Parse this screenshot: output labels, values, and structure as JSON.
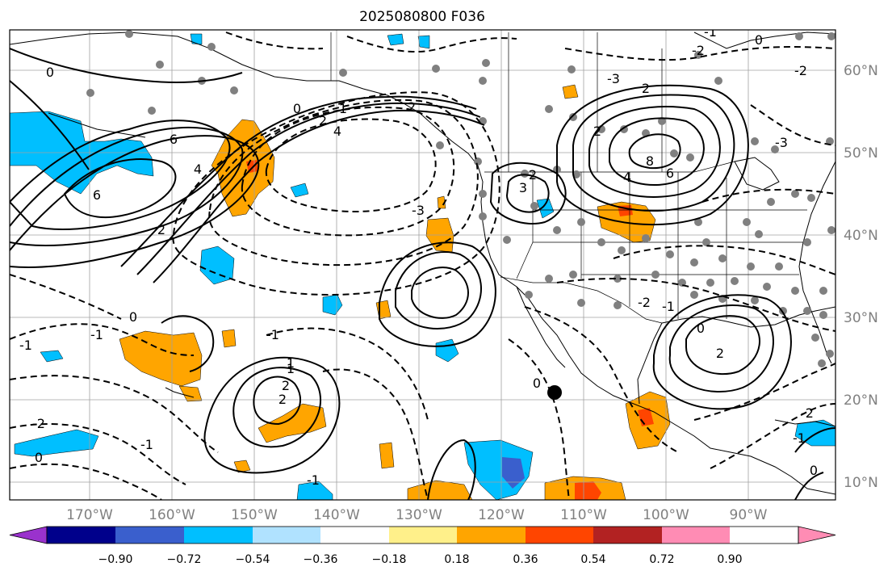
{
  "title": "2025080800 F036",
  "lat_labels": [
    "60°N",
    "50°N",
    "40°N",
    "30°N",
    "20°N",
    "10°N"
  ],
  "lon_labels": [
    "170°W",
    "160°W",
    "150°W",
    "140°W",
    "130°W",
    "120°W",
    "110°W",
    "100°W",
    "90°W"
  ],
  "colorbar": {
    "tick_labels": [
      "−0.90",
      "−0.72",
      "−0.54",
      "−0.36",
      "−0.18",
      "0.18",
      "0.36",
      "0.54",
      "0.72",
      "0.90"
    ],
    "colors": [
      "#9a32cd",
      "#00008b",
      "#3a5fcd",
      "#00bfff",
      "#b0e2ff",
      "#ffffff",
      "#fff08a",
      "#ffa500",
      "#ff4500",
      "#b22222",
      "#ff8cb4"
    ]
  },
  "contour_labels": {
    "pacific_high": [
      "6",
      "6",
      "4",
      "2"
    ],
    "gulf_low": [
      "0",
      "1",
      "2",
      "4",
      "2"
    ],
    "plains_high": [
      "8",
      "6",
      "4",
      "2",
      "2"
    ],
    "sw_high": [
      "3",
      "2"
    ],
    "gulf_high": [
      "2",
      "0"
    ],
    "hawaii_high": [
      "1",
      "2",
      "2"
    ],
    "misc": [
      "0",
      "-1",
      "0",
      "-1",
      "-2",
      "-1",
      "0",
      "-3",
      "-3",
      "-2",
      "-2",
      "-1",
      "-1",
      "0",
      "-3",
      "0",
      "-2",
      "-1",
      "-1",
      "-1",
      "-2",
      "0",
      "1"
    ]
  },
  "colors": {
    "warm": "#ffa500",
    "hot": "#ff4500",
    "cool": "#00bfff",
    "cold": "#3a5fcd",
    "coast": "#000000",
    "grid": "#a0a0a0",
    "dot": "#808080"
  }
}
